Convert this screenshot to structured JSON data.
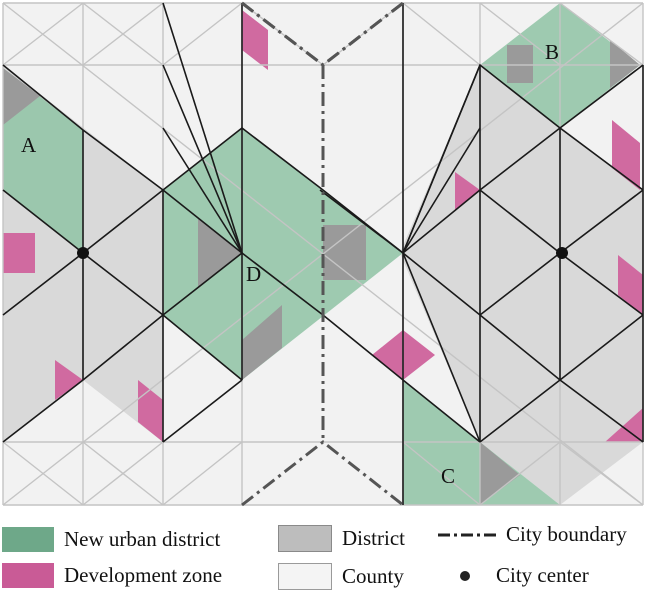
{
  "labels": {
    "A": "A",
    "B": "B",
    "C": "C",
    "D": "D"
  },
  "legend": {
    "new_urban_district": "New urban district",
    "district": "District",
    "city_boundary": "City boundary",
    "development_zone": "Development  zone",
    "county": "County",
    "city_center": "City center"
  },
  "colors": {
    "new_urban_district": "#7fb898",
    "district": "#b9b9b9",
    "district_block": "#9a9a9a",
    "development_zone": "#d06aa0",
    "county": "#f2f2f2",
    "thin_line": "#c4c4c4",
    "thick_line": "#111111",
    "boundary": "#555555"
  }
}
